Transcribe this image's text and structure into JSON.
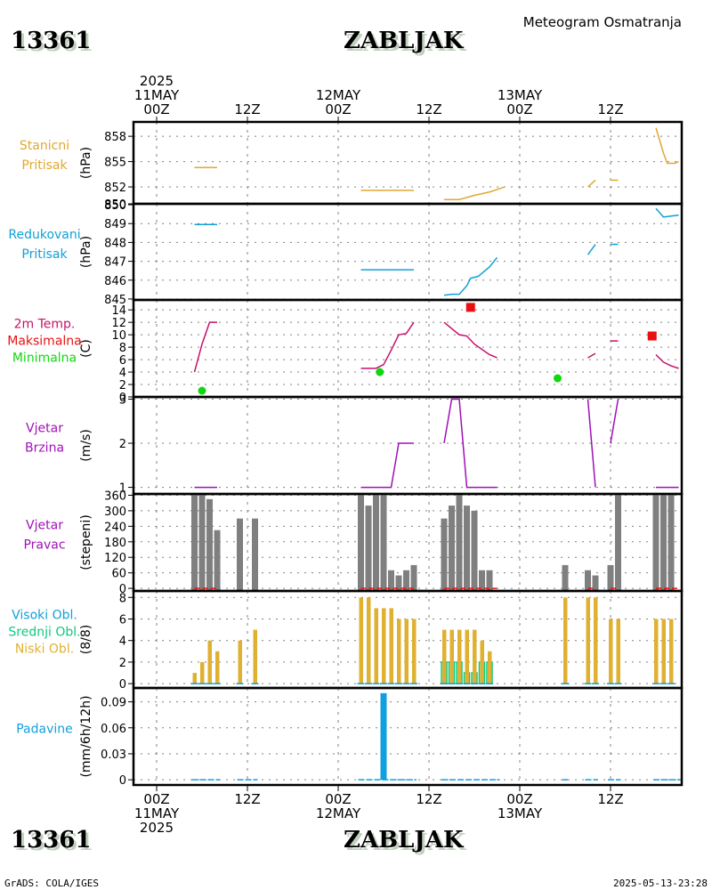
{
  "header": {
    "station_id": "13361",
    "station_name": "ZABLJAK",
    "subtitle": "Meteogram Osmatranja"
  },
  "footer": {
    "station_id": "13361",
    "station_name": "ZABLJAK",
    "credit": "GrADS: COLA/IGES",
    "timestamp": "2025-05-13-23:28"
  },
  "colors": {
    "station_pressure": "#e0a830",
    "reduced_pressure": "#10a0d8",
    "temperature": "#c8106a",
    "tmax": "#e81010",
    "tmin": "#10d810",
    "wind_speed": "#a010b8",
    "wind_dir": "#7f7f7f",
    "wind_dir_base": "#e81010",
    "cloud_high": "#10a0d8",
    "cloud_mid": "#10c880",
    "cloud_low": "#e0b030",
    "precip": "#10a0e0",
    "grid": "#808080"
  },
  "chart_data": {
    "type": "meteogram",
    "title": "Meteogram Osmatranja",
    "x_axis": {
      "start": "2025-05-11T00Z",
      "end": "2025-05-14T00Z",
      "top_labels": [
        {
          "hour": 0,
          "lines": [
            "2025",
            "11MAY",
            "00Z"
          ]
        },
        {
          "hour": 12,
          "lines": [
            "12Z"
          ]
        },
        {
          "hour": 24,
          "lines": [
            "12MAY",
            "00Z"
          ]
        },
        {
          "hour": 36,
          "lines": [
            "12Z"
          ]
        },
        {
          "hour": 48,
          "lines": [
            "13MAY",
            "00Z"
          ]
        },
        {
          "hour": 60,
          "lines": [
            "12Z"
          ]
        }
      ],
      "bottom_labels": [
        {
          "hour": 0,
          "lines": [
            "00Z",
            "11MAY",
            "2025"
          ]
        },
        {
          "hour": 12,
          "lines": [
            "12Z"
          ]
        },
        {
          "hour": 24,
          "lines": [
            "00Z",
            "12MAY"
          ]
        },
        {
          "hour": 36,
          "lines": [
            "12Z"
          ]
        },
        {
          "hour": 48,
          "lines": [
            "00Z",
            "13MAY"
          ]
        },
        {
          "hour": 60,
          "lines": [
            "12Z"
          ]
        }
      ]
    },
    "panels": [
      {
        "id": "station-pressure",
        "type": "line",
        "labels": [
          "Stanicni",
          "Pritisak"
        ],
        "label_colors": [
          "station_pressure",
          "station_pressure"
        ],
        "ylabel": "(hPa)",
        "ylim": [
          850,
          859.7
        ],
        "yticks": [
          850,
          852,
          855,
          858
        ],
        "series": [
          {
            "name": "Stanicni Pritisak",
            "color": "station_pressure",
            "segments": [
              [
                [
                  5,
                  854.3
                ],
                [
                  8,
                  854.3
                ]
              ],
              [
                [
                  27,
                  851.6
                ],
                [
                  34,
                  851.6
                ]
              ],
              [
                [
                  38,
                  850.5
                ],
                [
                  40,
                  850.5
                ],
                [
                  42,
                  851.0
                ],
                [
                  44,
                  851.4
                ],
                [
                  46,
                  852.0
                ]
              ],
              [
                [
                  57,
                  852.0
                ],
                [
                  58,
                  852.8
                ]
              ],
              [
                [
                  60,
                  852.8
                ],
                [
                  61,
                  852.8
                ]
              ],
              [
                [
                  66,
                  859.0
                ],
                [
                  67,
                  856.0
                ],
                [
                  67.5,
                  854.8
                ],
                [
                  68.5,
                  854.8
                ],
                [
                  69,
                  855.0
                ]
              ]
            ]
          }
        ]
      },
      {
        "id": "reduced-pressure",
        "type": "line",
        "labels": [
          "Redukovani",
          "Pritisak"
        ],
        "label_colors": [
          "reduced_pressure",
          "reduced_pressure"
        ],
        "ylabel": "(hPa)",
        "ylim": [
          844.95,
          850.05
        ],
        "yticks": [
          845,
          846,
          847,
          848,
          849,
          850
        ],
        "series": [
          {
            "name": "Redukovani Pritisak",
            "color": "reduced_pressure",
            "segments": [
              [
                [
                  5,
                  848.95
                ],
                [
                  8,
                  848.95
                ]
              ],
              [
                [
                  27,
                  846.55
                ],
                [
                  34,
                  846.55
                ]
              ],
              [
                [
                  38,
                  845.2
                ],
                [
                  39,
                  845.25
                ],
                [
                  40,
                  845.25
                ],
                [
                  41,
                  845.7
                ],
                [
                  41.5,
                  846.1
                ],
                [
                  42.5,
                  846.2
                ],
                [
                  44,
                  846.7
                ],
                [
                  45,
                  847.2
                ]
              ],
              [
                [
                  57,
                  847.35
                ],
                [
                  58,
                  847.9
                ]
              ],
              [
                [
                  60,
                  847.9
                ],
                [
                  61,
                  847.9
                ]
              ],
              [
                [
                  66,
                  849.8
                ],
                [
                  67,
                  849.35
                ],
                [
                  68,
                  849.4
                ],
                [
                  69,
                  849.45
                ]
              ]
            ]
          }
        ]
      },
      {
        "id": "temperature",
        "type": "line+markers",
        "labels": [
          "2m Temp.",
          "Maksimalna",
          "Minimalna"
        ],
        "label_colors": [
          "temperature",
          "tmax",
          "tmin"
        ],
        "ylabel": "(C)",
        "ylim": [
          0,
          15.6
        ],
        "yticks": [
          0,
          2,
          4,
          6,
          8,
          10,
          12,
          14
        ],
        "series": [
          {
            "name": "2m Temp.",
            "color": "temperature",
            "segments": [
              [
                [
                  5,
                  4.0
                ],
                [
                  6,
                  8.5
                ],
                [
                  7,
                  12.0
                ],
                [
                  8,
                  12.0
                ]
              ],
              [
                [
                  27,
                  4.6
                ],
                [
                  29,
                  4.6
                ],
                [
                  30,
                  5.2
                ],
                [
                  31,
                  7.5
                ],
                [
                  32,
                  10.0
                ],
                [
                  33,
                  10.2
                ],
                [
                  34,
                  12.0
                ]
              ],
              [
                [
                  38,
                  12.0
                ],
                [
                  40,
                  10.0
                ],
                [
                  41,
                  9.8
                ],
                [
                  42,
                  8.5
                ],
                [
                  44,
                  6.8
                ],
                [
                  45,
                  6.3
                ]
              ],
              [
                [
                  57,
                  6.3
                ],
                [
                  58,
                  7.0
                ]
              ],
              [
                [
                  60,
                  9.0
                ],
                [
                  61,
                  9.0
                ]
              ],
              [
                [
                  66,
                  6.8
                ],
                [
                  67,
                  5.6
                ],
                [
                  68,
                  5.0
                ],
                [
                  69,
                  4.6
                ]
              ]
            ]
          },
          {
            "name": "Maksimalna",
            "color": "tmax",
            "marker": "square",
            "points": [
              [
                41.5,
                14.4
              ],
              [
                65.5,
                9.8
              ]
            ]
          },
          {
            "name": "Minimalna",
            "color": "tmin",
            "marker": "circle",
            "points": [
              [
                6,
                1.0
              ],
              [
                29.5,
                4.0
              ],
              [
                53,
                3.0
              ]
            ]
          }
        ]
      },
      {
        "id": "wind-speed",
        "type": "line",
        "labels": [
          "Vjetar",
          "Brzina"
        ],
        "label_colors": [
          "wind_speed",
          "wind_speed"
        ],
        "ylabel": "(m/s)",
        "ylim": [
          0.85,
          3.05
        ],
        "yticks": [
          1,
          2,
          3
        ],
        "series": [
          {
            "name": "Vjetar Brzina",
            "color": "wind_speed",
            "segments": [
              [
                [
                  5,
                  1.0
                ],
                [
                  8,
                  1.0
                ]
              ],
              [
                [
                  27,
                  1.0
                ],
                [
                  31,
                  1.0
                ],
                [
                  32,
                  2.0
                ],
                [
                  34,
                  2.0
                ]
              ],
              [
                [
                  38,
                  2.0
                ],
                [
                  39,
                  3.0
                ],
                [
                  40,
                  3.0
                ],
                [
                  41,
                  1.0
                ],
                [
                  45,
                  1.0
                ]
              ],
              [
                [
                  57,
                  3.0
                ],
                [
                  58,
                  1.0
                ]
              ],
              [
                [
                  60,
                  2.0
                ],
                [
                  61,
                  3.0
                ]
              ],
              [
                [
                  66,
                  1.0
                ],
                [
                  69,
                  1.0
                ]
              ]
            ]
          }
        ]
      },
      {
        "id": "wind-direction",
        "type": "bar",
        "labels": [
          "Vjetar",
          "Pravac"
        ],
        "label_colors": [
          "wind_speed",
          "wind_speed"
        ],
        "ylabel": "(stepeni)",
        "ylim": [
          -10,
          365
        ],
        "yticks": [
          0,
          60,
          120,
          180,
          240,
          300,
          360
        ],
        "bars": [
          {
            "hour": 5,
            "value": 360
          },
          {
            "hour": 6,
            "value": 360
          },
          {
            "hour": 7,
            "value": 345
          },
          {
            "hour": 8,
            "value": 225
          },
          {
            "hour": 11,
            "value": 270
          },
          {
            "hour": 13,
            "value": 270
          },
          {
            "hour": 27,
            "value": 360
          },
          {
            "hour": 28,
            "value": 320
          },
          {
            "hour": 29,
            "value": 360
          },
          {
            "hour": 30,
            "value": 360
          },
          {
            "hour": 31,
            "value": 70
          },
          {
            "hour": 32,
            "value": 50
          },
          {
            "hour": 33,
            "value": 70
          },
          {
            "hour": 34,
            "value": 90
          },
          {
            "hour": 38,
            "value": 270
          },
          {
            "hour": 39,
            "value": 320
          },
          {
            "hour": 40,
            "value": 360
          },
          {
            "hour": 41,
            "value": 320
          },
          {
            "hour": 42,
            "value": 300
          },
          {
            "hour": 43,
            "value": 70
          },
          {
            "hour": 44,
            "value": 70
          },
          {
            "hour": 54,
            "value": 90
          },
          {
            "hour": 57,
            "value": 70
          },
          {
            "hour": 58,
            "value": 50
          },
          {
            "hour": 60,
            "value": 90
          },
          {
            "hour": 61,
            "value": 360
          },
          {
            "hour": 66,
            "value": 360
          },
          {
            "hour": 67,
            "value": 360
          },
          {
            "hour": 68,
            "value": 360
          }
        ],
        "baseline_segments": [
          [
            5,
            8
          ],
          [
            27,
            34
          ],
          [
            38,
            45
          ],
          [
            57,
            58
          ],
          [
            60,
            61
          ],
          [
            66,
            69
          ]
        ]
      },
      {
        "id": "clouds",
        "type": "bar",
        "labels": [
          "Visoki Obl.",
          "Srednji Obl.",
          "Niski Obl."
        ],
        "label_colors": [
          "cloud_high",
          "cloud_mid",
          "cloud_low"
        ],
        "ylabel": "(8/8)",
        "ylim": [
          -0.4,
          8.6
        ],
        "yticks": [
          0,
          2,
          4,
          6,
          8
        ],
        "low": [
          {
            "hour": 5,
            "value": 1
          },
          {
            "hour": 6,
            "value": 2
          },
          {
            "hour": 7,
            "value": 4
          },
          {
            "hour": 8,
            "value": 3
          },
          {
            "hour": 11,
            "value": 4
          },
          {
            "hour": 13,
            "value": 5
          },
          {
            "hour": 27,
            "value": 8
          },
          {
            "hour": 28,
            "value": 8
          },
          {
            "hour": 29,
            "value": 7
          },
          {
            "hour": 30,
            "value": 7
          },
          {
            "hour": 31,
            "value": 7
          },
          {
            "hour": 32,
            "value": 6
          },
          {
            "hour": 33,
            "value": 6
          },
          {
            "hour": 34,
            "value": 6
          },
          {
            "hour": 38,
            "value": 5
          },
          {
            "hour": 39,
            "value": 5
          },
          {
            "hour": 40,
            "value": 5
          },
          {
            "hour": 41,
            "value": 5
          },
          {
            "hour": 42,
            "value": 5
          },
          {
            "hour": 43,
            "value": 4
          },
          {
            "hour": 44,
            "value": 3
          },
          {
            "hour": 54,
            "value": 8
          },
          {
            "hour": 57,
            "value": 8
          },
          {
            "hour": 58,
            "value": 8
          },
          {
            "hour": 60,
            "value": 6
          },
          {
            "hour": 61,
            "value": 6
          },
          {
            "hour": 66,
            "value": 6
          },
          {
            "hour": 67,
            "value": 6
          },
          {
            "hour": 68,
            "value": 6
          }
        ],
        "mid": [
          {
            "hour": 38,
            "value": 2
          },
          {
            "hour": 39,
            "value": 2
          },
          {
            "hour": 40,
            "value": 2
          },
          {
            "hour": 41,
            "value": 1
          },
          {
            "hour": 42,
            "value": 1
          },
          {
            "hour": 43,
            "value": 2
          },
          {
            "hour": 44,
            "value": 2
          }
        ],
        "high": []
      },
      {
        "id": "precipitation",
        "type": "bar",
        "labels": [
          "Padavine"
        ],
        "label_colors": [
          "precip"
        ],
        "ylabel": "(mm/6h/12h)",
        "ylim": [
          -0.006,
          0.106
        ],
        "yticks": [
          0,
          0.03,
          0.06,
          0.09
        ],
        "ytick_labels": [
          "0",
          "0.03",
          "0.06",
          "0.09"
        ],
        "bars": [
          {
            "hour": 30,
            "value": 0.1
          }
        ],
        "zero_segments": [
          [
            5,
            8
          ],
          [
            11,
            13
          ],
          [
            27,
            34
          ],
          [
            38,
            45
          ],
          [
            54,
            54
          ],
          [
            57,
            58
          ],
          [
            60,
            61
          ],
          [
            66,
            69
          ]
        ]
      }
    ]
  }
}
